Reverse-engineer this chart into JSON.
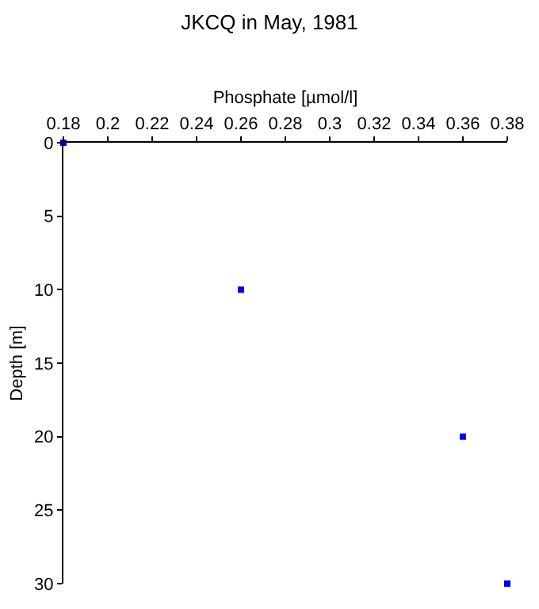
{
  "chart_data": {
    "type": "scatter",
    "title": "JKCQ in May, 1981",
    "xlabel": "Phosphate [µmol/l]",
    "ylabel": "Depth [m]",
    "x": [
      0.18,
      0.26,
      0.36,
      0.38
    ],
    "series": [
      {
        "color": "#0000ff",
        "values": [
          0,
          10,
          20,
          30
        ]
      }
    ],
    "xlim": [
      0.18,
      0.38
    ],
    "xticks": [
      0.18,
      0.2,
      0.22,
      0.24,
      0.26,
      0.28,
      0.3,
      0.32,
      0.34,
      0.36,
      0.38
    ],
    "ylim": [
      30,
      0
    ],
    "yticks": [
      0,
      5,
      10,
      15,
      20,
      25,
      30
    ],
    "grid": false,
    "marker": "square"
  }
}
